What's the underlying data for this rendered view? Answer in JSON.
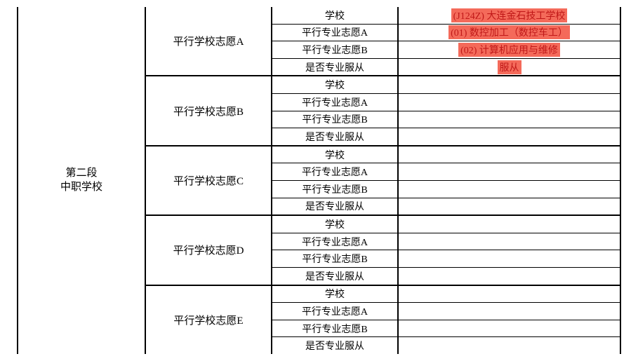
{
  "section": {
    "line1": "第二段",
    "line2": "中职学校"
  },
  "row_labels": {
    "school": "学校",
    "majorA": "平行专业志愿A",
    "majorB": "平行专业志愿B",
    "obey": "是否专业服从"
  },
  "groups": [
    {
      "label": "平行学校志愿A",
      "values": {
        "school": "(J124Z) 大连金石技工学校",
        "majorA": "(01) 数控加工（数控车工）",
        "majorB": "(02) 计算机应用与维修",
        "obey": "服从"
      },
      "highlight": true
    },
    {
      "label": "平行学校志愿B",
      "values": {
        "school": "",
        "majorA": "",
        "majorB": "",
        "obey": ""
      },
      "highlight": false
    },
    {
      "label": "平行学校志愿C",
      "values": {
        "school": "",
        "majorA": "",
        "majorB": "",
        "obey": ""
      },
      "highlight": false
    },
    {
      "label": "平行学校志愿D",
      "values": {
        "school": "",
        "majorA": "",
        "majorB": "",
        "obey": ""
      },
      "highlight": false
    },
    {
      "label": "平行学校志愿E",
      "values": {
        "school": "",
        "majorA": "",
        "majorB": "",
        "obey": ""
      },
      "highlight": false
    }
  ],
  "colors": {
    "highlight_bg": "#f46a5a",
    "text_red": "#c01818"
  }
}
